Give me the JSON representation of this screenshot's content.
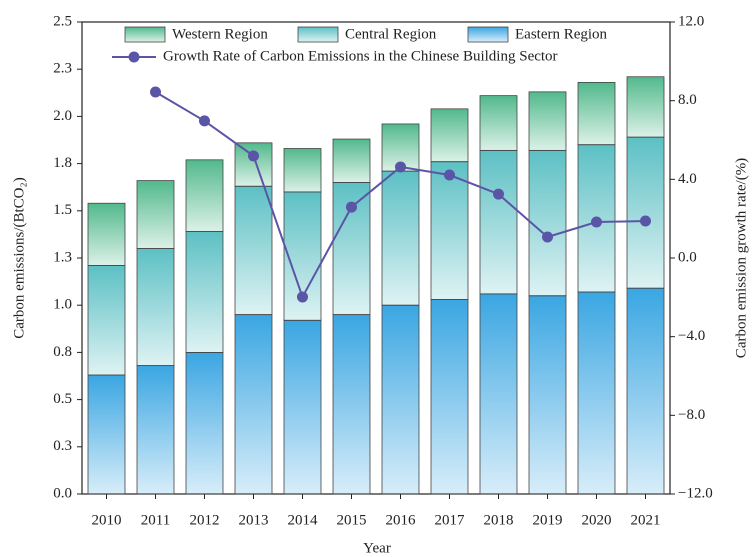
{
  "chart_data": {
    "type": "bar",
    "x_label": "Year",
    "y_label": "Carbon emissions/(BtCO₂)",
    "y2_label": "Carbon emission growth rate/(%)",
    "categories": [
      "2010",
      "2011",
      "2012",
      "2013",
      "2014",
      "2015",
      "2016",
      "2017",
      "2018",
      "2019",
      "2020",
      "2021"
    ],
    "stacked": true,
    "series": [
      {
        "name": "Western Region",
        "type": "bar",
        "color": "#52b98c",
        "values": [
          0.33,
          0.36,
          0.38,
          0.23,
          0.23,
          0.23,
          0.25,
          0.28,
          0.29,
          0.31,
          0.33,
          0.32
        ]
      },
      {
        "name": "Central Region",
        "type": "bar",
        "color": "#5cc0c4",
        "values": [
          0.58,
          0.62,
          0.64,
          0.68,
          0.68,
          0.7,
          0.71,
          0.73,
          0.76,
          0.77,
          0.78,
          0.8
        ]
      },
      {
        "name": "Eastern Region",
        "type": "bar",
        "color": "#3aa6e2",
        "values": [
          0.63,
          0.68,
          0.75,
          0.95,
          0.92,
          0.95,
          1.0,
          1.03,
          1.06,
          1.05,
          1.07,
          1.09
        ]
      },
      {
        "name": "Growth Rate of Carbon Emissions in the Chinese Building Sector",
        "type": "line",
        "axis": "y2",
        "color": "#5a55a6",
        "values": [
          null,
          8.44,
          6.97,
          5.19,
          -1.98,
          2.59,
          4.63,
          4.22,
          3.25,
          1.07,
          1.83,
          1.88
        ]
      }
    ],
    "ylim": [
      0,
      2.5
    ],
    "yticks": [
      {
        "value": 0,
        "label": "0.0"
      },
      {
        "value": 0.25,
        "label": "0.3"
      },
      {
        "value": 0.5,
        "label": "0.5"
      },
      {
        "value": 0.75,
        "label": "0.8"
      },
      {
        "value": 1,
        "label": "1.0"
      },
      {
        "value": 1.25,
        "label": "1.3"
      },
      {
        "value": 1.5,
        "label": "1.5"
      },
      {
        "value": 1.75,
        "label": "1.8"
      },
      {
        "value": 2,
        "label": "2.0"
      },
      {
        "value": 2.25,
        "label": "2.3"
      },
      {
        "value": 2.5,
        "label": "2.5"
      }
    ],
    "y2lim": [
      -12,
      12
    ],
    "y2ticks": [
      {
        "value": -12,
        "label": "−12.0"
      },
      {
        "value": -8,
        "label": "−8.0"
      },
      {
        "value": -4,
        "label": "−4.0"
      },
      {
        "value": 0,
        "label": "0.0"
      },
      {
        "value": 4,
        "label": "4.0"
      },
      {
        "value": 8,
        "label": "8.0"
      },
      {
        "value": 12,
        "label": "12.0"
      }
    ],
    "grid": false
  }
}
